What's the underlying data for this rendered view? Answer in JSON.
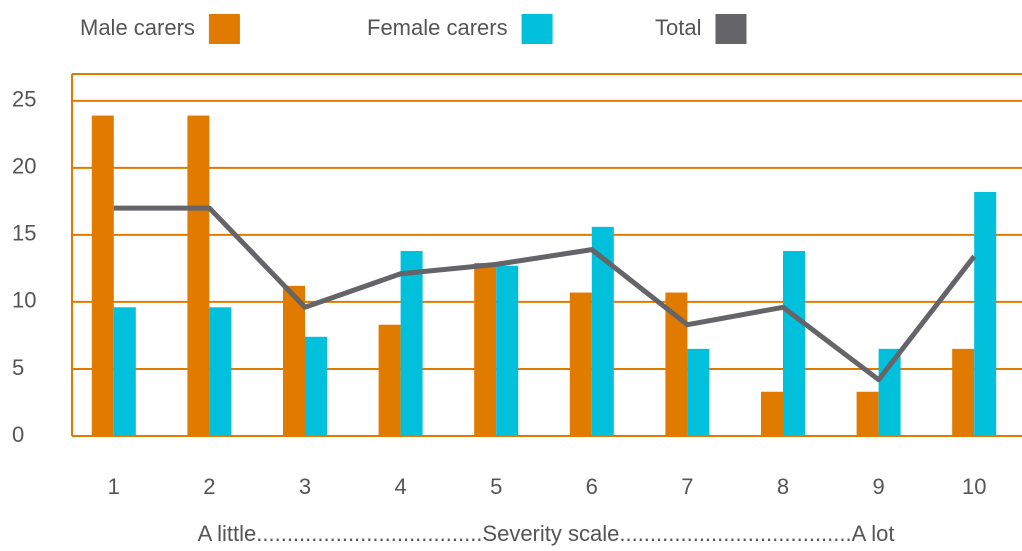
{
  "chart_data": {
    "type": "bar",
    "x_label": "A little.....................................Severity scale......................................A lot",
    "categories": [
      "1",
      "2",
      "3",
      "4",
      "5",
      "6",
      "7",
      "8",
      "9",
      "10"
    ],
    "series": [
      {
        "name": "Male carers",
        "color": "#e07b00",
        "values": [
          23.9,
          23.9,
          11.2,
          8.3,
          12.9,
          10.7,
          10.7,
          3.3,
          3.3,
          6.5
        ]
      },
      {
        "name": "Female carers",
        "color": "#00c0dc",
        "values": [
          9.6,
          9.6,
          7.4,
          13.8,
          12.7,
          15.6,
          6.5,
          13.8,
          6.5,
          18.2
        ]
      },
      {
        "name": "Total",
        "color": "#646469",
        "type": "line",
        "values": [
          17,
          17,
          9.6,
          12.1,
          12.8,
          13.9,
          8.3,
          9.6,
          4.2,
          13.4
        ]
      }
    ],
    "ylim": [
      0,
      27
    ],
    "yticks": [
      0,
      5,
      10,
      15,
      20,
      25
    ],
    "grid": true
  }
}
